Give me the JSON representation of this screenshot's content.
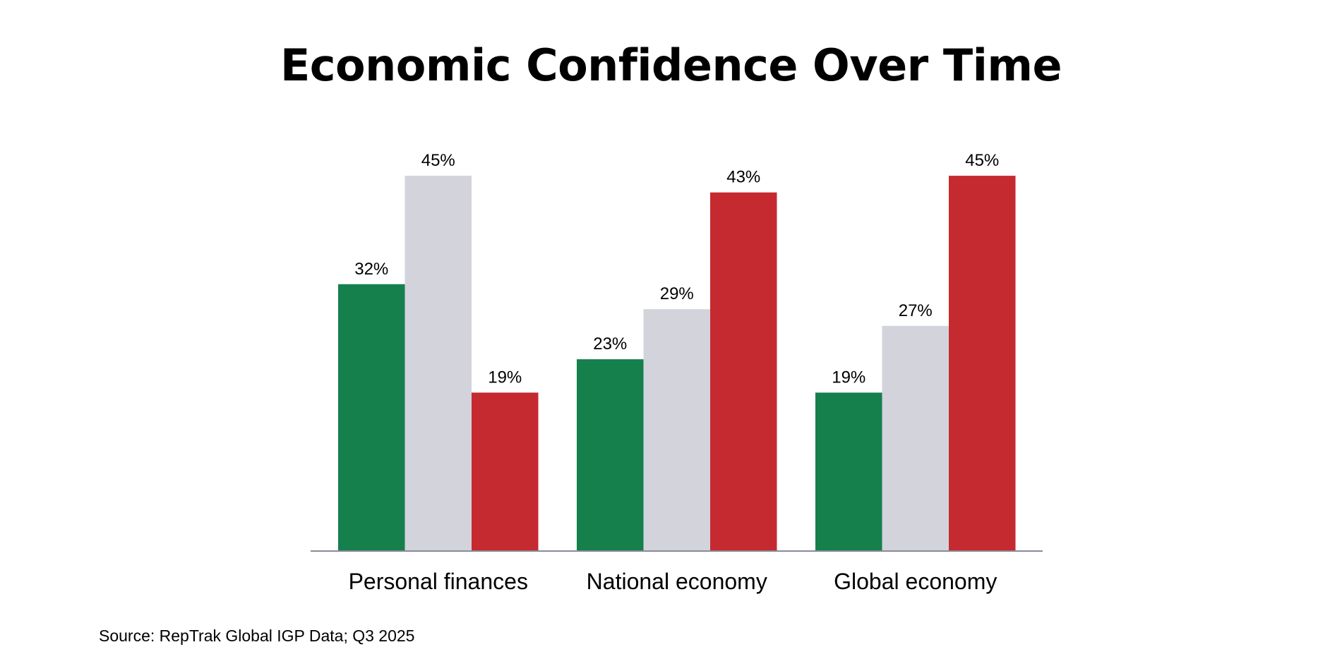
{
  "chart_data": {
    "type": "bar",
    "title": "Economic Confidence Over Time",
    "xlabel": "",
    "ylabel": "",
    "ylim": [
      0,
      50
    ],
    "categories": [
      "Personal finances",
      "National economy",
      "Global economy"
    ],
    "series": [
      {
        "color": "#15804c",
        "values": [
          32,
          23,
          19
        ]
      },
      {
        "color": "#d3d3dc",
        "values": [
          45,
          29,
          27
        ]
      },
      {
        "color": "#c52a30",
        "values": [
          19,
          43,
          45
        ]
      }
    ],
    "value_format": "%",
    "grid": false,
    "legend": "none"
  },
  "source": "Source: RepTrak Global IGP Data; Q3 2025",
  "colors": {
    "axis": "#8a8a99",
    "text": "#000000",
    "background": "#ffffff"
  }
}
